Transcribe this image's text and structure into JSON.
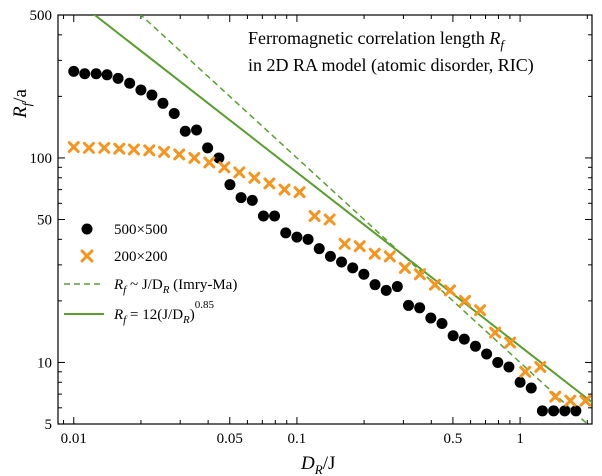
{
  "chart_data": {
    "type": "scatter",
    "xscale": "log",
    "yscale": "log",
    "xlim": [
      0.0085,
      2.1
    ],
    "ylim": [
      5,
      500
    ],
    "x_ticks": [
      {
        "value": 0.01,
        "label": "0.01"
      },
      {
        "value": 0.05,
        "label": "0.05"
      },
      {
        "value": 0.1,
        "label": "0.1"
      },
      {
        "value": 0.5,
        "label": "0.5"
      },
      {
        "value": 1,
        "label": "1"
      }
    ],
    "y_ticks": [
      {
        "value": 5,
        "label": "5"
      },
      {
        "value": 10,
        "label": "10"
      },
      {
        "value": 50,
        "label": "50"
      },
      {
        "value": 100,
        "label": "100"
      },
      {
        "value": 500,
        "label": "500"
      }
    ],
    "xlabel": {
      "main": "D",
      "sub": "R",
      "rest": "/J"
    },
    "ylabel": {
      "main": "R",
      "sub": "f",
      "rest": "/a"
    },
    "annotation": {
      "line1_pre": "Ferromagnetic correlation length ",
      "line1_var": "R",
      "line1_sub": "f",
      "line2": "in 2D RA model (atomic disorder, RIC)"
    },
    "series": [
      {
        "name": "500×500",
        "marker": "circle",
        "color": "#000000",
        "x": [
          0.01,
          0.0112,
          0.0126,
          0.0141,
          0.0158,
          0.0178,
          0.02,
          0.0224,
          0.0251,
          0.0282,
          0.0316,
          0.0355,
          0.0398,
          0.0447,
          0.0501,
          0.0562,
          0.0631,
          0.0708,
          0.0794,
          0.0891,
          0.1,
          0.1122,
          0.1259,
          0.1413,
          0.1585,
          0.1778,
          0.1995,
          0.2239,
          0.2512,
          0.2818,
          0.3162,
          0.3548,
          0.3981,
          0.4467,
          0.5012,
          0.5623,
          0.631,
          0.7079,
          0.7943,
          0.8913,
          1.0,
          1.122,
          1.259,
          1.413,
          1.585,
          1.778
        ],
        "y": [
          265,
          258,
          258,
          255,
          245,
          232,
          215,
          203,
          185,
          165,
          135,
          137,
          112,
          100,
          74,
          64,
          62,
          52,
          52,
          43,
          41,
          40,
          36,
          33,
          31,
          29,
          27,
          24,
          22.5,
          23.5,
          19,
          18.5,
          16.5,
          15.5,
          13.5,
          13,
          12,
          11,
          10,
          9.5,
          8,
          7.5,
          5.8,
          5.8,
          5.8,
          5.8
        ]
      },
      {
        "name": "200×200",
        "marker": "x",
        "color": "#f7941d",
        "x": [
          0.01,
          0.0117,
          0.0137,
          0.016,
          0.0186,
          0.0218,
          0.0254,
          0.0297,
          0.0347,
          0.0405,
          0.0473,
          0.0552,
          0.0645,
          0.0753,
          0.088,
          0.1028,
          0.12,
          0.1402,
          0.1637,
          0.1912,
          0.2233,
          0.2608,
          0.3046,
          0.3557,
          0.4155,
          0.4852,
          0.5667,
          0.6619,
          0.7731,
          0.9029,
          1.0545,
          1.2316,
          1.4384,
          1.68,
          1.962
        ],
        "y": [
          113,
          112,
          112,
          111,
          110,
          109,
          107,
          104,
          100,
          95,
          90,
          85,
          80,
          75,
          70,
          68,
          52,
          50,
          38,
          37,
          34,
          33,
          29,
          27,
          24,
          22.5,
          20,
          18,
          14,
          12.5,
          9,
          9.5,
          6.8,
          6.5,
          6.5
        ]
      }
    ],
    "fit_lines": [
      {
        "name_parts": {
          "main": "R",
          "sub": "f",
          "mid": " ~ J/D",
          "sub2": "R",
          "tail": " (Imry-Ma)"
        },
        "style": "dashed",
        "color": "#5a9e2e",
        "coef": 10,
        "exponent": 1.0
      },
      {
        "name_parts": {
          "main": "R",
          "sub": "f",
          "mid": " = 12(J/D",
          "sub2": "R",
          "tail": ")",
          "sup": "0.85"
        },
        "style": "solid",
        "color": "#5a9e2e",
        "coef": 12,
        "exponent": 0.85
      }
    ],
    "legend": {
      "position": "lower-left"
    },
    "grid": false
  }
}
